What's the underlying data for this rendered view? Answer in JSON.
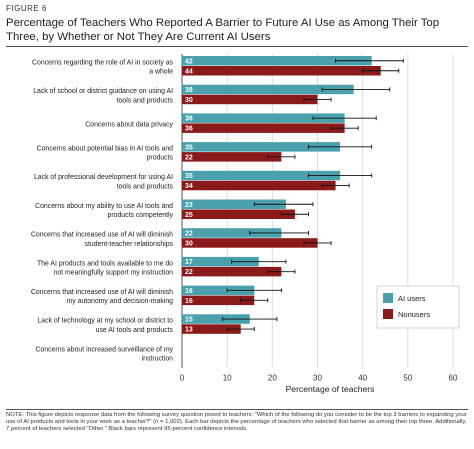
{
  "figure_label": "FIGURE 6",
  "title_line1": "Percentage of Teachers Who Reported A Barrier to Future AI Use as Among Their Top",
  "title_line2": "Three, by Whether or Not They Are Current AI Users",
  "note": "NOTE: This figure depicts response data from the following survey question posed to teachers: \"Which of the following do you consider to be the top 3 barriers to expanding your use of AI products and tools in your work as a teacher?\" (n = 1,002). Each bar depicts the percentage of teachers who selected that barrier as among their top three. Additionally, 7 percent of teachers selected \"Other.\" Black bars represent 95-percent confidence intervals.",
  "colors": {
    "ai_users": "#4aa0ad",
    "nonusers": "#8b1a1a",
    "grid": "#dddddd",
    "axis": "#555555"
  },
  "chart_data": {
    "type": "bar",
    "orientation": "horizontal",
    "categories": [
      [
        "Concerns regarding the role of AI in society as",
        "a whole"
      ],
      [
        "Lack of school or district guidance on using AI",
        "tools and products"
      ],
      [
        "Concerns about data privacy"
      ],
      [
        "Concerns about potential bias in AI tools and",
        "products"
      ],
      [
        "Lack of professional development for using AI",
        "tools and products"
      ],
      [
        "Concerns about my ability to use AI tools and",
        "products competently"
      ],
      [
        "Concerns that increased use of AI will diminish",
        "student-teacher relationships"
      ],
      [
        "The AI products and tools available to me do",
        "not meaningfully support my instruction"
      ],
      [
        "Concerns that increased use of AI will diminish",
        "my autonomy and decision-making"
      ],
      [
        "Lack of technology at my school or district to",
        "use AI tools and products"
      ],
      [
        "Concerns about increased surveillance of my",
        "instruction"
      ]
    ],
    "series": [
      {
        "name": "AI users",
        "values": [
          42,
          38,
          36,
          35,
          35,
          23,
          22,
          17,
          16,
          15,
          null
        ],
        "ci_low": [
          34,
          31,
          29,
          28,
          28,
          16,
          15,
          11,
          10,
          9,
          null
        ],
        "ci_high": [
          49,
          46,
          43,
          42,
          42,
          29,
          28,
          23,
          22,
          21,
          null
        ]
      },
      {
        "name": "Nonusers",
        "values": [
          44,
          30,
          36,
          22,
          34,
          25,
          30,
          22,
          16,
          13,
          null
        ],
        "ci_low": [
          40,
          27,
          33,
          19,
          31,
          22,
          27,
          19,
          13,
          10,
          null
        ],
        "ci_high": [
          48,
          33,
          39,
          25,
          37,
          28,
          33,
          25,
          19,
          16,
          null
        ]
      }
    ],
    "xlabel": "Percentage of teachers",
    "xlim": [
      0,
      60
    ],
    "xticks": [
      0,
      10,
      20,
      30,
      40,
      50,
      60
    ],
    "grid": true,
    "legend_position": "right"
  }
}
